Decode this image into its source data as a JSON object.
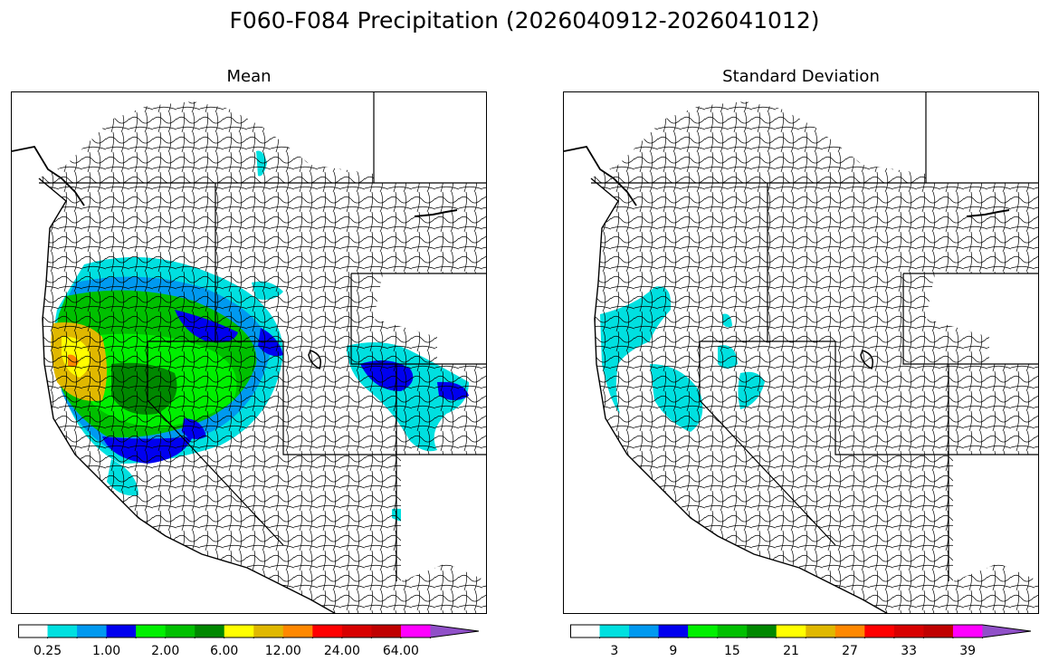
{
  "figure": {
    "title": "F060-F084 Precipitation (2026040912-2026041012)"
  },
  "panels": [
    {
      "id": "mean",
      "title": "Mean",
      "colorbar": {
        "colors": [
          "#ffffff",
          "#00e0e0",
          "#0099f0",
          "#0000f0",
          "#00f000",
          "#00c000",
          "#008800",
          "#ffff00",
          "#e0b800",
          "#ff8800",
          "#ff0000",
          "#d80000",
          "#c00000",
          "#ff00ff",
          "#9050c8"
        ],
        "tick_labels": [
          "0.25",
          "1.00",
          "2.00",
          "6.00",
          "12.00",
          "24.00",
          "64.00"
        ],
        "extend": "max"
      }
    },
    {
      "id": "stddev",
      "title": "Standard Deviation",
      "colorbar": {
        "colors": [
          "#ffffff",
          "#00e0e0",
          "#0099f0",
          "#0000f0",
          "#00f000",
          "#00c000",
          "#008800",
          "#ffff00",
          "#e0b800",
          "#ff8800",
          "#ff0000",
          "#d80000",
          "#c00000",
          "#ff00ff",
          "#9050c8"
        ],
        "tick_labels": [
          "3",
          "9",
          "15",
          "21",
          "27",
          "33",
          "39"
        ],
        "extend": "max"
      }
    }
  ]
}
